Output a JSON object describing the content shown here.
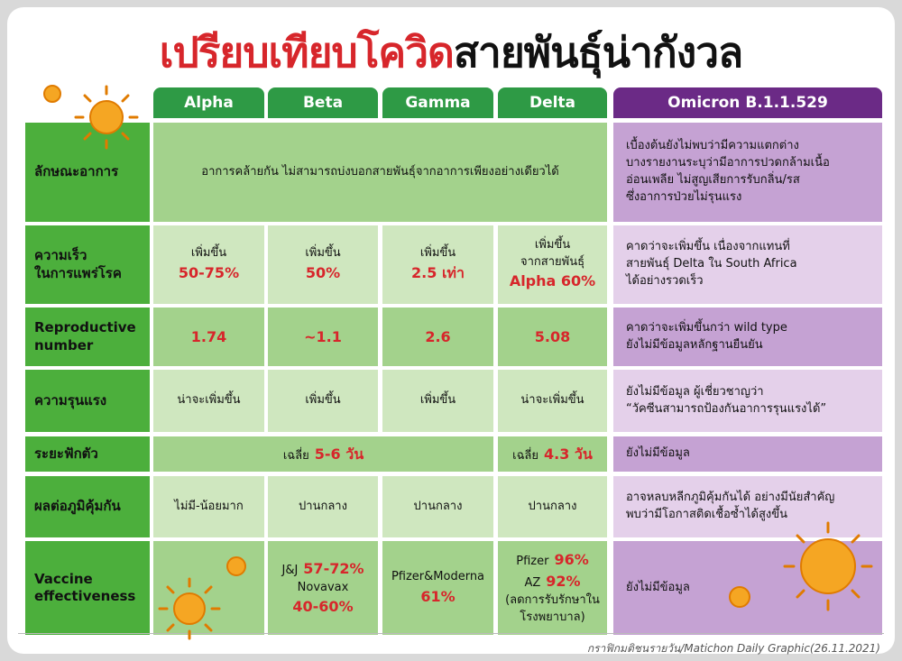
{
  "title": {
    "part1": "เปรียบเทียบโควิด",
    "part2": "สายพันธุ์น่ากังวล"
  },
  "highlight_color": "#d7262b",
  "columns": [
    "Alpha",
    "Beta",
    "Gamma",
    "Delta",
    "Omicron B.1.1.529"
  ],
  "rows": [
    {
      "label": [
        "ลักษณะอาการ"
      ],
      "cells": [
        {
          "span": 4,
          "lines": [
            [
              "อาการคล้ายกัน ไม่สามารถบ่งบอกสายพันธุ์จากอาการเพียงอย่างเดียวได้"
            ]
          ]
        },
        {
          "span": 1,
          "lines": [
            [
              "เบื้องต้นยังไม่พบว่ามีความแตกต่าง"
            ],
            [
              "บางรายงานระบุว่ามีอาการปวดกล้ามเนื้อ"
            ],
            [
              "อ่อนเพลีย ไม่สูญเสียการรับกลิ่น/รส"
            ],
            [
              "ซึ่งอาการป่วยไม่รุนแรง"
            ]
          ]
        }
      ]
    },
    {
      "label": [
        "ความเร็ว",
        "ในการแพร่โรค"
      ],
      "cells": [
        {
          "span": 1,
          "lines": [
            [
              "เพิ่มขึ้น"
            ],
            [
              {
                "text": "50-75%",
                "highlight": true
              }
            ]
          ]
        },
        {
          "span": 1,
          "lines": [
            [
              "เพิ่มขึ้น"
            ],
            [
              {
                "text": "50%",
                "highlight": true
              }
            ]
          ]
        },
        {
          "span": 1,
          "lines": [
            [
              "เพิ่มขึ้น"
            ],
            [
              {
                "text": "2.5 เท่า",
                "highlight": true
              }
            ]
          ]
        },
        {
          "span": 1,
          "lines": [
            [
              "เพิ่มขึ้น"
            ],
            [
              "จากสายพันธุ์"
            ],
            [
              {
                "text": "Alpha 60%",
                "highlight": true
              }
            ]
          ]
        },
        {
          "span": 1,
          "lines": [
            [
              "คาดว่าจะเพิ่มขึ้น เนื่องจากแทนที่"
            ],
            [
              "สายพันธุ์ Delta ใน South Africa"
            ],
            [
              "ได้อย่างรวดเร็ว"
            ]
          ]
        }
      ]
    },
    {
      "label": [
        "Reproductive",
        "number"
      ],
      "cells": [
        {
          "span": 1,
          "lines": [
            [
              {
                "text": "1.74",
                "highlight": true
              }
            ]
          ]
        },
        {
          "span": 1,
          "lines": [
            [
              {
                "text": "~1.1",
                "highlight": true
              }
            ]
          ]
        },
        {
          "span": 1,
          "lines": [
            [
              {
                "text": "2.6",
                "highlight": true
              }
            ]
          ]
        },
        {
          "span": 1,
          "lines": [
            [
              {
                "text": "5.08",
                "highlight": true
              }
            ]
          ]
        },
        {
          "span": 1,
          "lines": [
            [
              "คาดว่าจะเพิ่มขึ้นกว่า wild type"
            ],
            [
              "ยังไม่มีข้อมูลหลักฐานยืนยัน"
            ]
          ]
        }
      ]
    },
    {
      "label": [
        "ความรุนแรง"
      ],
      "cells": [
        {
          "span": 1,
          "lines": [
            [
              "น่าจะเพิ่มขึ้น"
            ]
          ]
        },
        {
          "span": 1,
          "lines": [
            [
              "เพิ่มขึ้น"
            ]
          ]
        },
        {
          "span": 1,
          "lines": [
            [
              "เพิ่มขึ้น"
            ]
          ]
        },
        {
          "span": 1,
          "lines": [
            [
              "น่าจะเพิ่มขึ้น"
            ]
          ]
        },
        {
          "span": 1,
          "lines": [
            [
              "ยังไม่มีข้อมูล ผู้เชี่ยวชาญว่า"
            ],
            [
              "“วัคซีนสามารถป้องกันอาการรุนแรงได้”"
            ]
          ]
        }
      ]
    },
    {
      "label": [
        "ระยะฟักตัว"
      ],
      "cells": [
        {
          "span": 3,
          "lines": [
            [
              "เฉลี่ย",
              {
                "text": "5-6 วัน",
                "highlight": true
              }
            ]
          ]
        },
        {
          "span": 1,
          "lines": [
            [
              "เฉลี่ย",
              {
                "text": "4.3 วัน",
                "highlight": true
              }
            ]
          ]
        },
        {
          "span": 1,
          "lines": [
            [
              "ยังไม่มีข้อมูล"
            ]
          ]
        }
      ]
    },
    {
      "label": [
        "ผลต่อภูมิคุ้มกัน"
      ],
      "cells": [
        {
          "span": 1,
          "lines": [
            [
              "ไม่มี-น้อยมาก"
            ]
          ]
        },
        {
          "span": 1,
          "lines": [
            [
              "ปานกลาง"
            ]
          ]
        },
        {
          "span": 1,
          "lines": [
            [
              "ปานกลาง"
            ]
          ]
        },
        {
          "span": 1,
          "lines": [
            [
              "ปานกลาง"
            ]
          ]
        },
        {
          "span": 1,
          "lines": [
            [
              "อาจหลบหลีกภูมิคุ้มกันได้ อย่างมีนัยสำคัญ"
            ],
            [
              "พบว่ามีโอกาสติดเชื้อซ้ำได้สูงขึ้น"
            ]
          ]
        }
      ]
    },
    {
      "label": [
        "Vaccine",
        "effectiveness"
      ],
      "cells": [
        {
          "span": 1,
          "lines": []
        },
        {
          "span": 1,
          "lines": [
            [
              "J&J",
              {
                "text": "57-72%",
                "highlight": true
              }
            ],
            [
              "Novavax"
            ],
            [
              {
                "text": "40-60%",
                "highlight": true
              }
            ]
          ]
        },
        {
          "span": 1,
          "lines": [
            [
              "Pfizer&Moderna"
            ],
            [
              {
                "text": "61%",
                "highlight": true
              }
            ]
          ]
        },
        {
          "span": 1,
          "lines": [
            [
              "Pfizer",
              {
                "text": "96%",
                "highlight": true
              }
            ],
            [
              "AZ",
              {
                "text": "92%",
                "highlight": true
              }
            ],
            [
              "(ลดการรับรักษาใน"
            ],
            [
              "โรงพยาบาล)"
            ]
          ]
        },
        {
          "span": 1,
          "lines": [
            [
              "ยังไม่มีข้อมูล"
            ]
          ]
        }
      ]
    }
  ],
  "footer": "กราฟิกมติชนรายวัน/Matichon Daily Graphic(26.11.2021)"
}
